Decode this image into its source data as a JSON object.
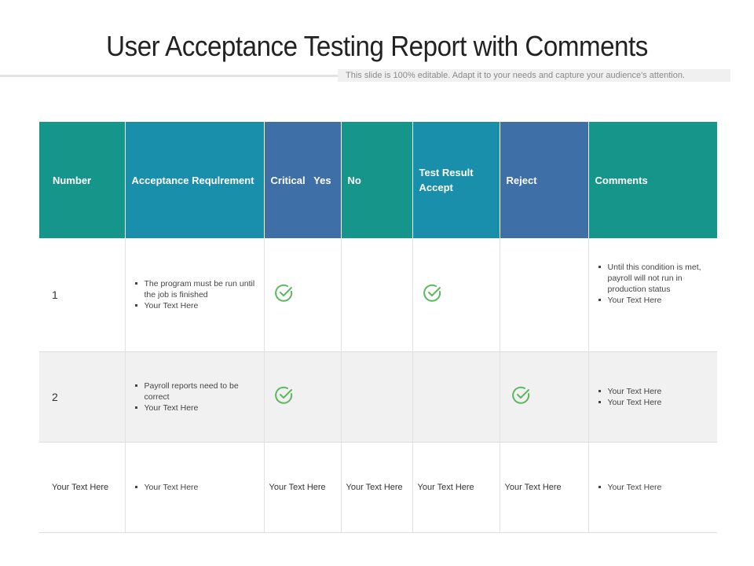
{
  "title": "User Acceptance Testing Report with Comments",
  "subtitle": "This slide is 100% editable. Adapt it to your needs and capture your audience's attention.",
  "colors": {
    "teal": "#16968a",
    "cyan": "#1a8fab",
    "blue": "#3e6fa6",
    "check": "#5cb85c"
  },
  "table": {
    "headers": [
      "Number",
      "Acceptance Requlrement",
      "Critical   Yes",
      "No",
      "Test Result Accept",
      "Reject",
      "Comments"
    ],
    "rows": [
      {
        "number": "1",
        "requirement": [
          "The program must be run until the job is finished",
          "Your Text Here"
        ],
        "comments": [
          "Until this condition is met, payroll will not run in production status",
          "Your Text Here"
        ]
      },
      {
        "number": "2",
        "requirement": [
          "Payroll reports need to be correct",
          "Your Text Here"
        ],
        "comments": [
          "Your Text Here",
          "Your Text Here"
        ]
      },
      {
        "number": "Your Text Here",
        "requirement": [
          "Your Text Here"
        ],
        "critical_yes": "Your Text Here",
        "no": "Your Text Here",
        "accept": "Your Text Here",
        "reject": "Your Text Here",
        "comments": [
          "Your Text Here"
        ]
      }
    ]
  }
}
